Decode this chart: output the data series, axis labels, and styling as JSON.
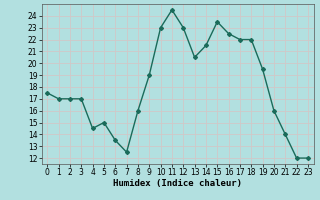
{
  "x": [
    0,
    1,
    2,
    3,
    4,
    5,
    6,
    7,
    8,
    9,
    10,
    11,
    12,
    13,
    14,
    15,
    16,
    17,
    18,
    19,
    20,
    21,
    22,
    23
  ],
  "y": [
    17.5,
    17,
    17,
    17,
    14.5,
    15,
    13.5,
    12.5,
    16,
    19,
    23,
    24.5,
    23,
    20.5,
    21.5,
    23.5,
    22.5,
    22,
    22,
    19.5,
    16,
    14,
    12,
    12
  ],
  "line_color": "#1a6b5a",
  "marker": "D",
  "marker_size": 2,
  "bg_color": "#b2e0e0",
  "grid_color": "#d0c8c8",
  "ylim": [
    11.5,
    25
  ],
  "xlim": [
    -0.5,
    23.5
  ],
  "yticks": [
    12,
    13,
    14,
    15,
    16,
    17,
    18,
    19,
    20,
    21,
    22,
    23,
    24
  ],
  "xticks": [
    0,
    1,
    2,
    3,
    4,
    5,
    6,
    7,
    8,
    9,
    10,
    11,
    12,
    13,
    14,
    15,
    16,
    17,
    18,
    19,
    20,
    21,
    22,
    23
  ],
  "xlabel": "Humidex (Indice chaleur)",
  "xlabel_fontsize": 6.5,
  "tick_fontsize": 5.5,
  "line_width": 1.0
}
